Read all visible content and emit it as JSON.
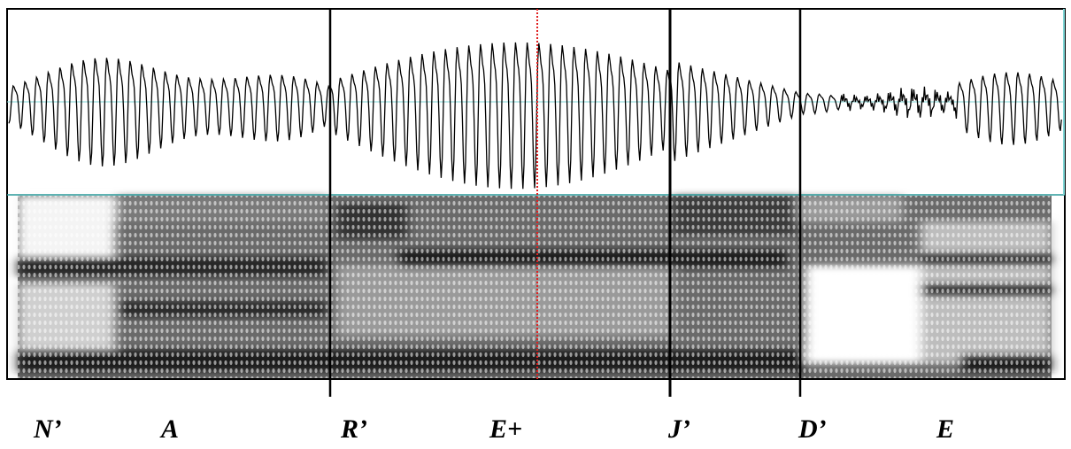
{
  "segment_labels": [
    "N’",
    "A",
    "R’",
    "E+",
    "J’",
    "D’",
    "E"
  ]
}
